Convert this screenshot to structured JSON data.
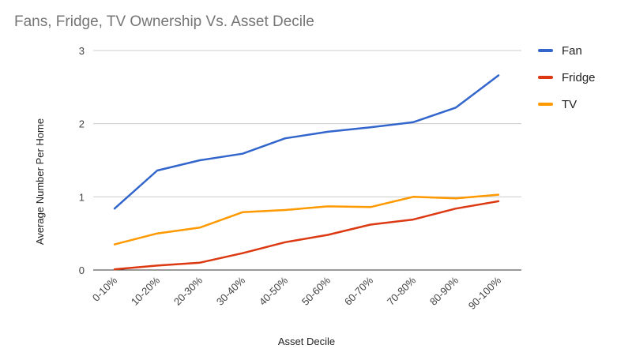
{
  "chart_data": {
    "type": "line",
    "title": "Fans, Fridge, TV Ownership Vs. Asset Decile",
    "xlabel": "Asset Decile",
    "ylabel": "Average Number Per Home",
    "categories": [
      "0-10%",
      "10-20%",
      "20-30%",
      "30-40%",
      "40-50%",
      "50-60%",
      "60-70%",
      "70-80%",
      "80-90%",
      "90-100%"
    ],
    "ylim": [
      0,
      3
    ],
    "yticks": [
      "0",
      "1",
      "2",
      "3"
    ],
    "grid": true,
    "legend_position": "right",
    "series": [
      {
        "name": "Fan",
        "color": "#3366cc",
        "values": [
          0.84,
          1.36,
          1.5,
          1.59,
          1.8,
          1.89,
          1.95,
          2.02,
          2.22,
          2.66
        ]
      },
      {
        "name": "Fridge",
        "color": "#dc3912",
        "values": [
          0.01,
          0.06,
          0.1,
          0.23,
          0.38,
          0.48,
          0.62,
          0.69,
          0.84,
          0.94
        ]
      },
      {
        "name": "TV",
        "color": "#ff9900",
        "values": [
          0.35,
          0.5,
          0.58,
          0.79,
          0.82,
          0.87,
          0.86,
          1.0,
          0.98,
          1.03
        ]
      }
    ]
  }
}
